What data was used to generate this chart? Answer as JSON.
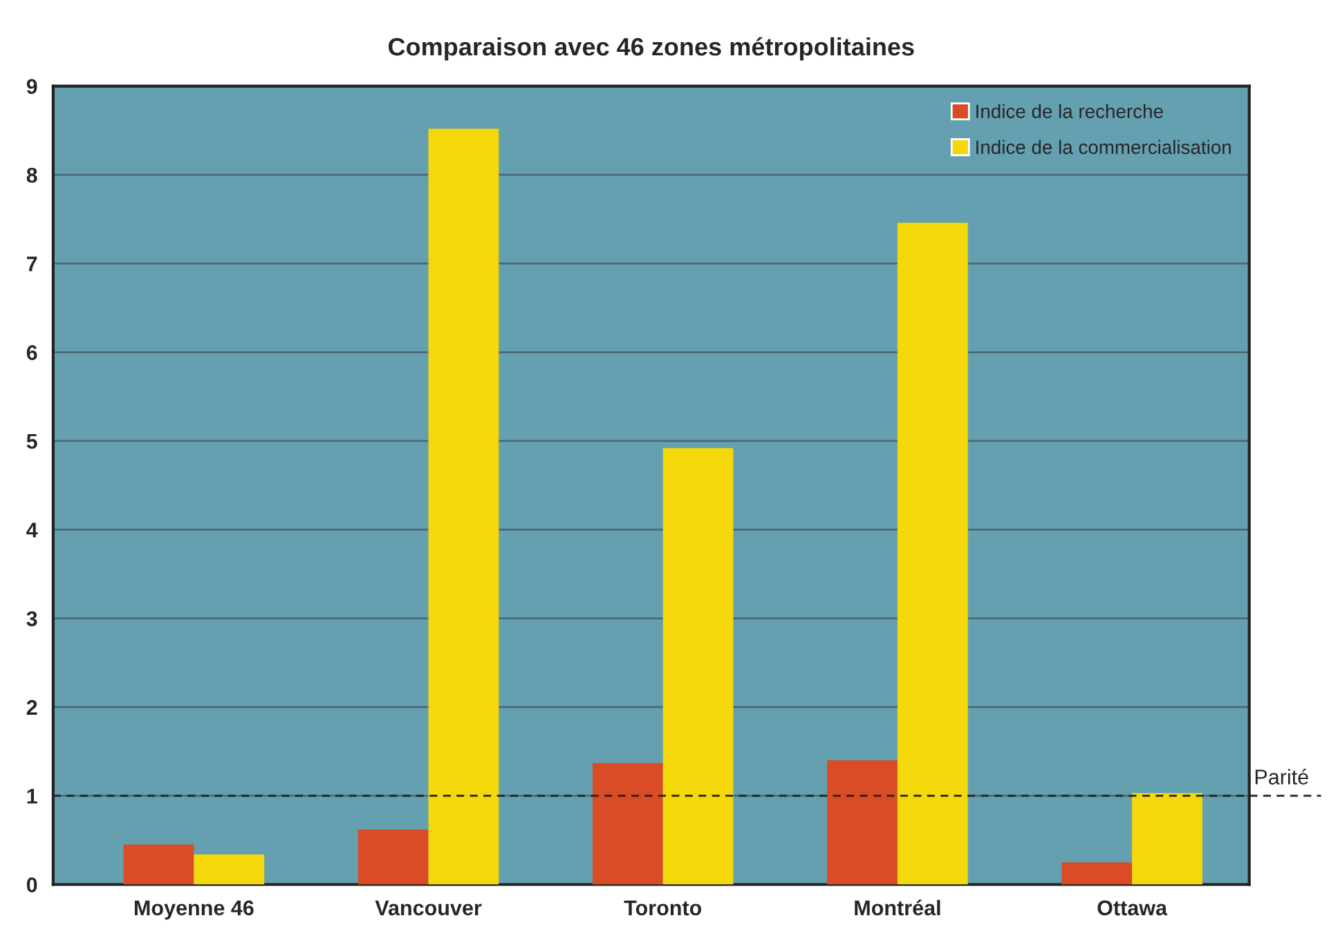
{
  "chart_data": {
    "type": "bar",
    "title": "Comparaison avec 46 zones métropolitaines",
    "categories": [
      "Moyenne 46",
      "Vancouver",
      "Toronto",
      "Montréal",
      "Ottawa"
    ],
    "series": [
      {
        "name": "Indice de la recherche",
        "color": "#d94c25",
        "values": [
          0.45,
          0.62,
          1.37,
          1.4,
          0.25
        ]
      },
      {
        "name": "Indice de la commercialisation",
        "color": "#f5d80c",
        "values": [
          0.34,
          8.52,
          4.92,
          7.46,
          1.03
        ]
      }
    ],
    "ylim": [
      0,
      9
    ],
    "yticks": [
      0,
      1,
      2,
      3,
      4,
      5,
      6,
      7,
      8,
      9
    ],
    "grid": "y",
    "legend": "top right",
    "ref_lines": [
      {
        "axis": "y",
        "value": 1,
        "label": "Parité",
        "color": "#222222",
        "line_style": "dashed"
      }
    ]
  }
}
